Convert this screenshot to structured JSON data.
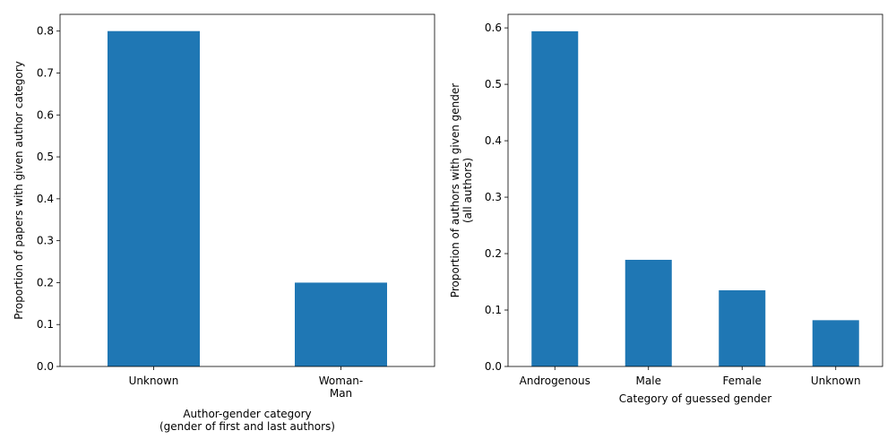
{
  "chart_data": [
    {
      "type": "bar",
      "categories": [
        "Unknown",
        "Woman-\nMan"
      ],
      "values": [
        0.8,
        0.2
      ],
      "xlabel": "Author-gender category\n(gender of first and last authors)",
      "ylabel": "Proportion of papers with given author category",
      "ylim": [
        0,
        0.84
      ],
      "yticks": [
        "0.0",
        "0.1",
        "0.2",
        "0.3",
        "0.4",
        "0.5",
        "0.6",
        "0.7",
        "0.8"
      ],
      "bar_color": "#1f77b4",
      "grid": false
    },
    {
      "type": "bar",
      "categories": [
        "Androgenous",
        "Male",
        "Female",
        "Unknown"
      ],
      "values": [
        0.594,
        0.189,
        0.135,
        0.082
      ],
      "xlabel": "Category of guessed gender",
      "ylabel": "Proportion of authors with given gender\n(all authors)",
      "ylim": [
        0,
        0.624
      ],
      "yticks": [
        "0.0",
        "0.1",
        "0.2",
        "0.3",
        "0.4",
        "0.5",
        "0.6"
      ],
      "bar_color": "#1f77b4",
      "grid": false
    }
  ]
}
